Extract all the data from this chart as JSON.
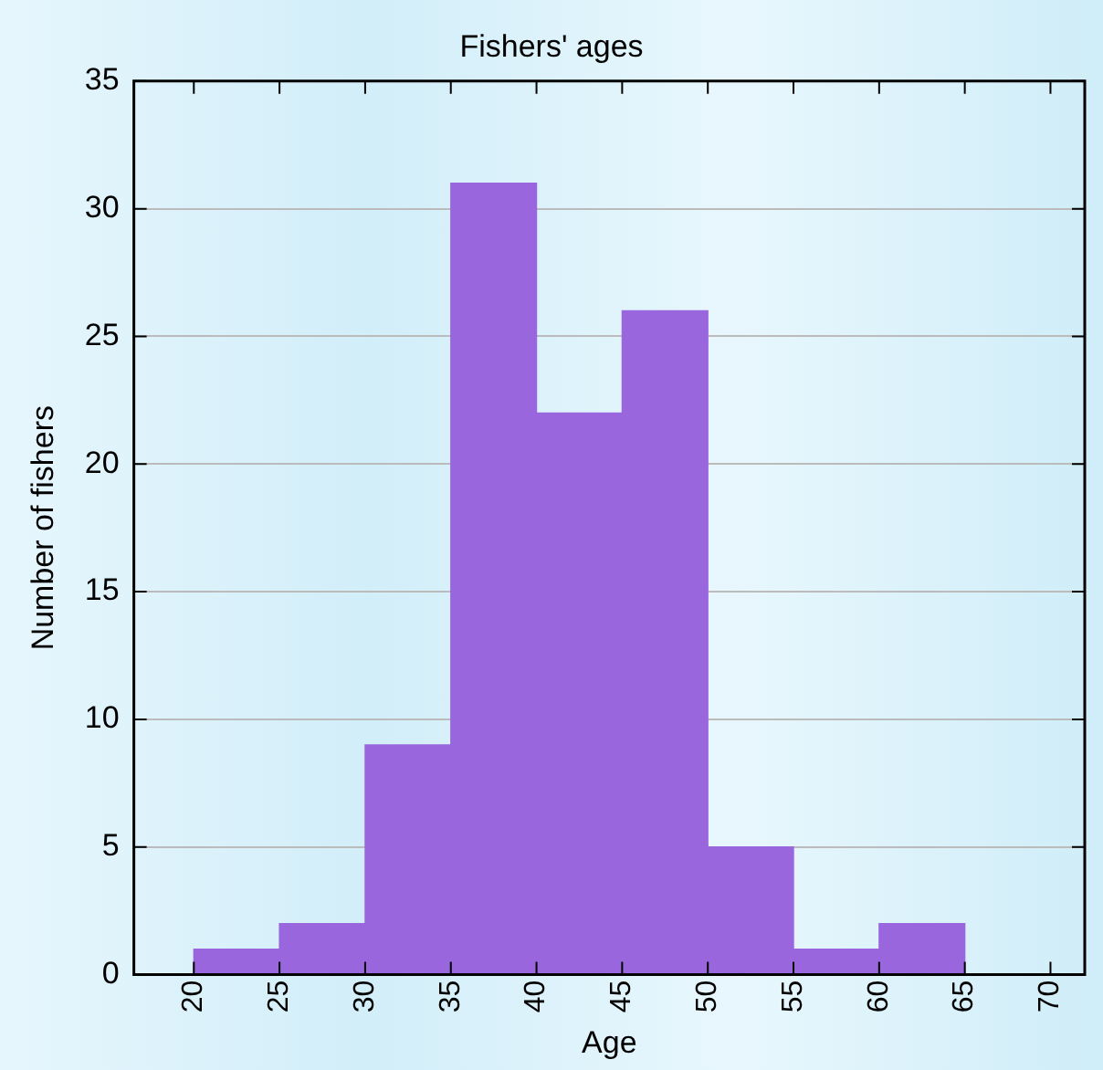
{
  "chart_data": {
    "type": "histogram",
    "title": "Fishers' ages",
    "xlabel": "Age",
    "ylabel": "Number of fishers",
    "bins": [
      20,
      25,
      30,
      35,
      40,
      45,
      50,
      55,
      60,
      65
    ],
    "values": [
      1,
      2,
      9,
      31,
      22,
      26,
      5,
      1,
      2
    ],
    "color": "#9966dd",
    "xlim": [
      16.5,
      72
    ],
    "xticks": [
      20,
      25,
      30,
      35,
      40,
      45,
      50,
      55,
      60,
      65,
      70
    ],
    "ylim": [
      0,
      35
    ],
    "yticks": [
      0,
      5,
      10,
      15,
      20,
      25,
      30,
      35
    ],
    "grid": "y",
    "legend": false
  }
}
